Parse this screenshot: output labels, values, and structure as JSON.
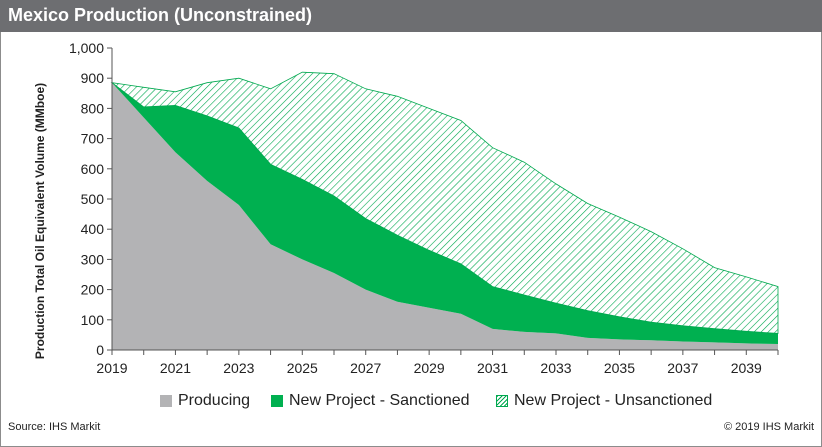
{
  "title": "Mexico Production (Unconstrained)",
  "source": "Source: IHS Markit",
  "copyright": "© 2019 IHS Markit",
  "colors": {
    "title_bar": "#6d6e71",
    "producing": "#b3b3b5",
    "sanctioned": "#00b050",
    "unsanctioned": "#00a84f"
  },
  "chart_data": {
    "type": "area",
    "stacked": true,
    "ylabel": "Production Total Oil Equivalent Volume (MMboe)",
    "xlabel": "",
    "ylim": [
      0,
      1000
    ],
    "yticks": [
      "0",
      "100",
      "200",
      "300",
      "400",
      "500",
      "600",
      "700",
      "800",
      "900",
      "1,000"
    ],
    "xticks": [
      "2019",
      "2021",
      "2023",
      "2025",
      "2027",
      "2029",
      "2031",
      "2033",
      "2035",
      "2037",
      "2039"
    ],
    "grid": false,
    "legend": "bottom",
    "x": [
      2019,
      2020,
      2021,
      2022,
      2023,
      2024,
      2025,
      2026,
      2027,
      2028,
      2029,
      2030,
      2031,
      2032,
      2033,
      2034,
      2035,
      2036,
      2037,
      2038,
      2039,
      2040
    ],
    "series": [
      {
        "name": "Producing",
        "values": [
          885,
          770,
          655,
          560,
          480,
          350,
          300,
          255,
          200,
          160,
          140,
          120,
          70,
          60,
          55,
          40,
          35,
          32,
          28,
          25,
          22,
          20
        ]
      },
      {
        "name": "New Project - Sanctioned",
        "values": [
          0,
          35,
          155,
          215,
          255,
          265,
          265,
          255,
          235,
          220,
          190,
          165,
          140,
          122,
          100,
          90,
          75,
          60,
          52,
          46,
          40,
          35
        ]
      },
      {
        "name": "New Project - Unsanctioned",
        "values": [
          0,
          65,
          45,
          110,
          165,
          250,
          355,
          405,
          430,
          460,
          470,
          475,
          460,
          440,
          395,
          355,
          330,
          300,
          255,
          202,
          180,
          155
        ]
      }
    ]
  }
}
